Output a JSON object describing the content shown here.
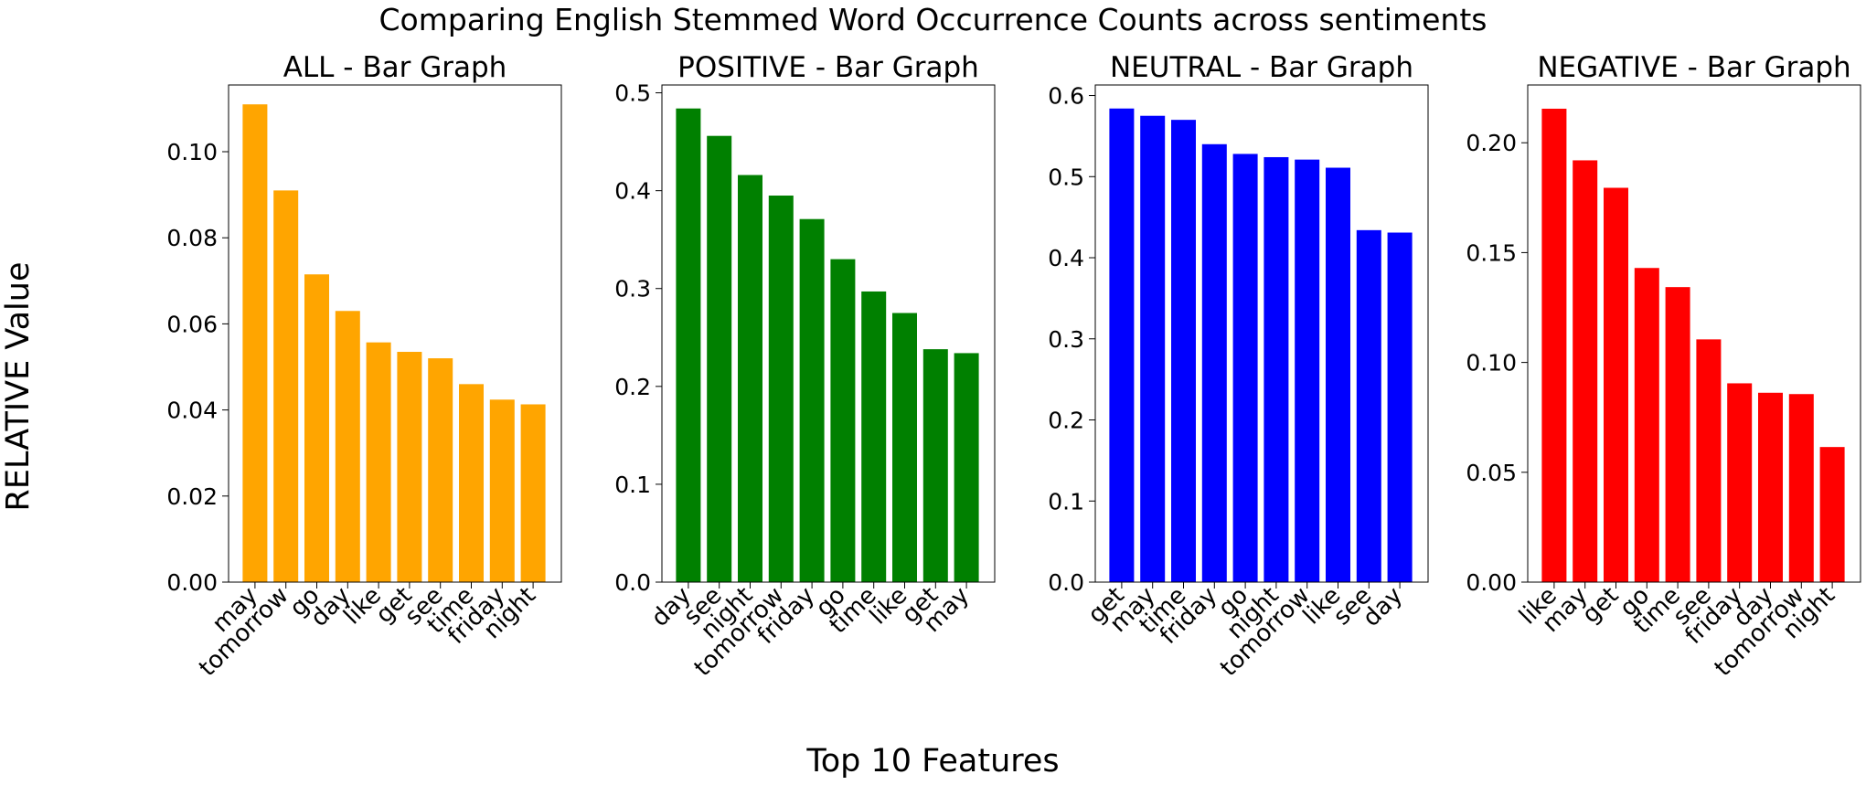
{
  "figure": {
    "suptitle": "Comparing English Stemmed Word Occurrence Counts across sentiments",
    "supylabel": "RELATIVE Value",
    "supxlabel": "Top 10 Features"
  },
  "chart_data": [
    {
      "type": "bar",
      "title": "ALL - Bar Graph",
      "color": "#FFA500",
      "categories": [
        "may",
        "tomorrow",
        "go",
        "day",
        "like",
        "get",
        "see",
        "time",
        "friday",
        "night"
      ],
      "values": [
        0.111,
        0.091,
        0.0715,
        0.063,
        0.0557,
        0.0535,
        0.052,
        0.046,
        0.0424,
        0.0413
      ],
      "ylim": [
        0,
        0.1155
      ],
      "yticks": [
        "0.00",
        "0.02",
        "0.04",
        "0.06",
        "0.08",
        "0.10"
      ],
      "ytick_values": [
        0,
        0.02,
        0.04,
        0.06,
        0.08,
        0.1
      ],
      "grid": false
    },
    {
      "type": "bar",
      "title": "POSITIVE - Bar Graph",
      "color": "#008000",
      "categories": [
        "day",
        "see",
        "night",
        "tomorrow",
        "friday",
        "go",
        "time",
        "like",
        "get",
        "may"
      ],
      "values": [
        0.484,
        0.456,
        0.416,
        0.395,
        0.371,
        0.33,
        0.297,
        0.275,
        0.238,
        0.234
      ],
      "ylim": [
        0,
        0.508
      ],
      "yticks": [
        "0.0",
        "0.1",
        "0.2",
        "0.3",
        "0.4",
        "0.5"
      ],
      "ytick_values": [
        0,
        0.1,
        0.2,
        0.3,
        0.4,
        0.5
      ],
      "grid": false
    },
    {
      "type": "bar",
      "title": "NEUTRAL - Bar Graph",
      "color": "#0000FF",
      "categories": [
        "get",
        "may",
        "time",
        "friday",
        "go",
        "night",
        "tomorrow",
        "like",
        "see",
        "day"
      ],
      "values": [
        0.584,
        0.575,
        0.57,
        0.54,
        0.528,
        0.524,
        0.521,
        0.511,
        0.434,
        0.431
      ],
      "ylim": [
        0,
        0.613
      ],
      "yticks": [
        "0.0",
        "0.1",
        "0.2",
        "0.3",
        "0.4",
        "0.5",
        "0.6"
      ],
      "ytick_values": [
        0,
        0.1,
        0.2,
        0.3,
        0.4,
        0.5,
        0.6
      ],
      "grid": false
    },
    {
      "type": "bar",
      "title": "NEGATIVE - Bar Graph",
      "color": "#FF0000",
      "categories": [
        "like",
        "may",
        "get",
        "go",
        "time",
        "see",
        "friday",
        "day",
        "tomorrow",
        "night"
      ],
      "values": [
        0.2155,
        0.192,
        0.1795,
        0.143,
        0.1343,
        0.1105,
        0.0905,
        0.0862,
        0.0856,
        0.0615
      ],
      "ylim": [
        0,
        0.2263
      ],
      "yticks": [
        "0.00",
        "0.05",
        "0.10",
        "0.15",
        "0.20"
      ],
      "ytick_values": [
        0,
        0.05,
        0.1,
        0.15,
        0.2
      ],
      "grid": false
    }
  ]
}
